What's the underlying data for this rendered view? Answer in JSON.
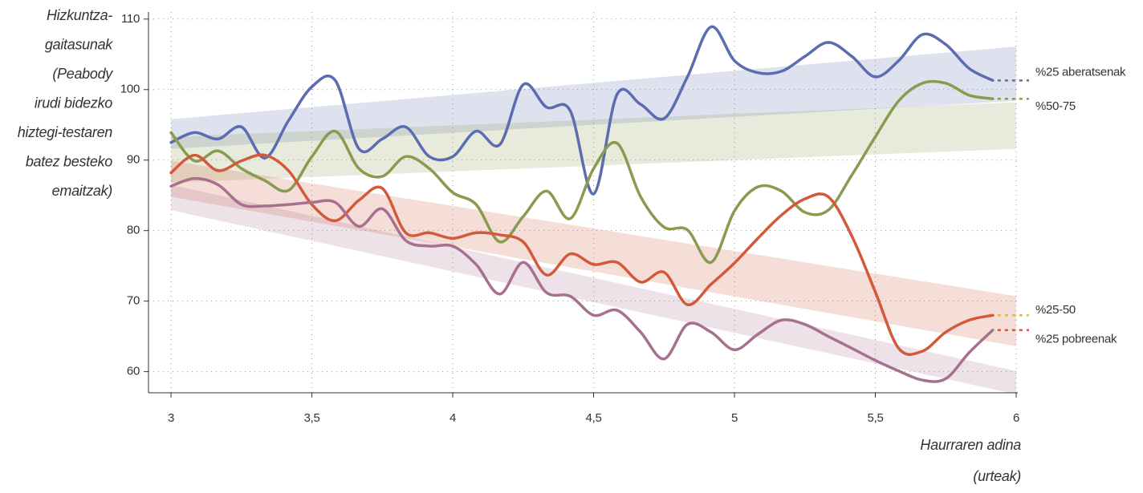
{
  "chart_data": {
    "type": "line",
    "y_label": [
      "Hizkuntza-",
      "gaitasunak",
      "(Peabody",
      "irudi bidezko",
      "hiztegi-testaren",
      "batez besteko",
      "emaitzak)"
    ],
    "x_label": [
      "Haurraren adina",
      "(urteak)"
    ],
    "x": [
      3,
      3.083,
      3.167,
      3.25,
      3.333,
      3.417,
      3.5,
      3.583,
      3.667,
      3.75,
      3.833,
      3.917,
      4,
      4.083,
      4.167,
      4.25,
      4.333,
      4.417,
      4.5,
      4.583,
      4.667,
      4.75,
      4.833,
      4.917,
      5,
      5.083,
      5.167,
      5.25,
      5.333,
      5.417,
      5.5,
      5.583,
      5.667,
      5.75,
      5.833,
      5.917
    ],
    "xlim": [
      2.92,
      6
    ],
    "xticks": [
      3,
      {
        "value": 3.5,
        "label": "3,5"
      },
      4,
      {
        "value": 4.5,
        "label": "4,5"
      },
      5,
      {
        "value": 5.5,
        "label": "5,5"
      },
      6
    ],
    "ylim": [
      57,
      111
    ],
    "yticks": [
      60,
      70,
      80,
      90,
      100,
      110
    ],
    "grid": true,
    "series": [
      {
        "name": "%25 aberatsenak",
        "color": "#5b6cb0",
        "end_color": "#5b6cb0",
        "values": [
          92.5,
          93.9,
          93.0,
          94.7,
          90.3,
          95.6,
          100.4,
          101.3,
          91.6,
          93.0,
          94.7,
          90.5,
          90.5,
          94.1,
          92.2,
          100.7,
          97.5,
          97.0,
          85.2,
          99.3,
          97.9,
          95.9,
          101.8,
          108.9,
          104.1,
          102.4,
          102.6,
          104.7,
          106.7,
          104.7,
          101.8,
          104.1,
          107.8,
          106.4,
          103.0,
          101.3
        ],
        "band": {
          "x": [
            3,
            6
          ],
          "lower": [
            91.6,
            98.4
          ],
          "upper": [
            95.8,
            106.1
          ]
        }
      },
      {
        "name": "%50-75",
        "color": "#8a9a4e",
        "end_color": "#8a9a4e",
        "values": [
          93.9,
          89.9,
          91.3,
          88.8,
          87.1,
          85.7,
          90.5,
          94.1,
          88.8,
          87.7,
          90.5,
          88.8,
          85.4,
          83.7,
          78.4,
          82.0,
          85.6,
          81.7,
          88.8,
          92.4,
          84.8,
          80.5,
          80.1,
          75.5,
          82.8,
          86.2,
          85.6,
          82.6,
          82.9,
          87.9,
          93.3,
          98.4,
          100.9,
          100.9,
          99.2,
          98.7
        ],
        "band": {
          "x": [
            3,
            6
          ],
          "lower": [
            86.8,
            91.6
          ],
          "upper": [
            93.3,
            98.2
          ]
        }
      },
      {
        "name": "%25-50",
        "color": "#d25a3a",
        "end_color": "#e3b84a",
        "values": [
          88.2,
          90.7,
          88.5,
          89.9,
          90.7,
          88.5,
          83.7,
          81.4,
          84.3,
          86.0,
          79.7,
          79.7,
          78.9,
          79.7,
          79.4,
          78.4,
          73.7,
          76.7,
          75.2,
          75.5,
          72.7,
          74.1,
          69.5,
          72.4,
          75.4,
          78.9,
          82.2,
          84.5,
          84.8,
          79.2,
          71.3,
          63.3,
          62.9,
          65.6,
          67.3,
          68.0
        ],
        "band": {
          "x": [
            3,
            6
          ],
          "lower": [
            84.8,
            63.6
          ],
          "upper": [
            89.9,
            70.7
          ]
        }
      },
      {
        "name": "%25 pobreenak",
        "color": "#a8708f",
        "end_color": "#d25a3a",
        "values": [
          86.3,
          87.4,
          86.5,
          83.7,
          83.5,
          83.7,
          84.0,
          84.0,
          80.6,
          83.1,
          78.6,
          77.8,
          77.8,
          75.2,
          71.0,
          75.5,
          71.2,
          70.7,
          68.0,
          68.7,
          65.6,
          61.8,
          66.7,
          65.6,
          63.1,
          65.3,
          67.3,
          66.7,
          65.0,
          63.3,
          61.6,
          60.1,
          58.8,
          59.0,
          62.7,
          65.9
        ],
        "band": {
          "x": [
            3,
            6
          ],
          "lower": [
            82.9,
            56.8
          ],
          "upper": [
            86.5,
            60.1
          ]
        }
      }
    ]
  }
}
